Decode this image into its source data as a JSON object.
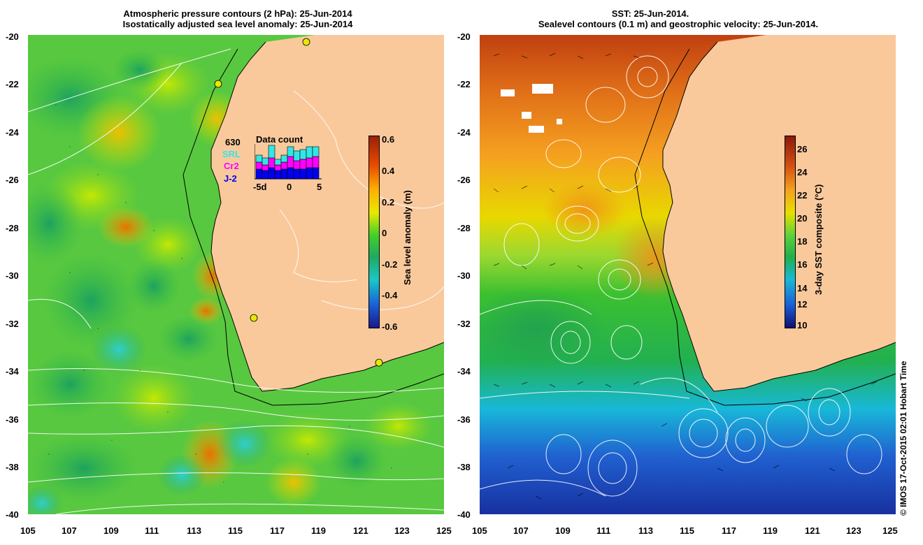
{
  "left_panel": {
    "title_line1": "Atmospheric pressure contours (2 hPa): 25-Jun-2014",
    "title_line2": "Isostatically adjusted sea level anomaly: 25-Jun-2014",
    "colorbar": {
      "label": "Sea level anomaly (m)",
      "ticks": [
        "0.6",
        "0.4",
        "0.2",
        "0",
        "-0.2",
        "-0.4",
        "-0.6"
      ],
      "colors": [
        "#99200a",
        "#e84a00",
        "#ffb000",
        "#e8e800",
        "#3fcf2a",
        "#1faa60",
        "#18c8c8",
        "#1a5fd8",
        "#1a1a8a"
      ]
    },
    "data_count": {
      "title": "Data count",
      "total": "630",
      "missions": [
        {
          "name": "SRL",
          "color": "#33e6e6"
        },
        {
          "name": "Cr2",
          "color": "#ff00ff"
        },
        {
          "name": "J-2",
          "color": "#0000ee"
        }
      ],
      "axis_labels": [
        "-5d",
        "0",
        "5"
      ]
    },
    "colors": {
      "land": "#f9c99c",
      "ocean_base": "#5fd040"
    }
  },
  "right_panel": {
    "title_line1": "SST: 25-Jun-2014.",
    "title_line2": "Sealevel contours (0.1 m) and geostrophic velocity: 25-Jun-2014.",
    "colorbar": {
      "label": "3-day SST composite (°C)",
      "ticks": [
        "26",
        "24",
        "22",
        "20",
        "18",
        "16",
        "14",
        "12",
        "10"
      ],
      "colors": [
        "#8a1a0a",
        "#d24d10",
        "#f5a020",
        "#e8e000",
        "#5ad23a",
        "#1fb04a",
        "#18b8d8",
        "#1a5fd8",
        "#101070"
      ]
    },
    "colors": {
      "land": "#f9c99c"
    }
  },
  "axes": {
    "lat_ticks": [
      "-20",
      "-22",
      "-24",
      "-26",
      "-28",
      "-30",
      "-32",
      "-34",
      "-36",
      "-38",
      "-40"
    ],
    "lon_ticks": [
      "105",
      "107",
      "109",
      "111",
      "113",
      "115",
      "117",
      "119",
      "121",
      "123",
      "125"
    ]
  },
  "credit": "© IMOS 17-Oct-2015 02:01 Hobart Time"
}
